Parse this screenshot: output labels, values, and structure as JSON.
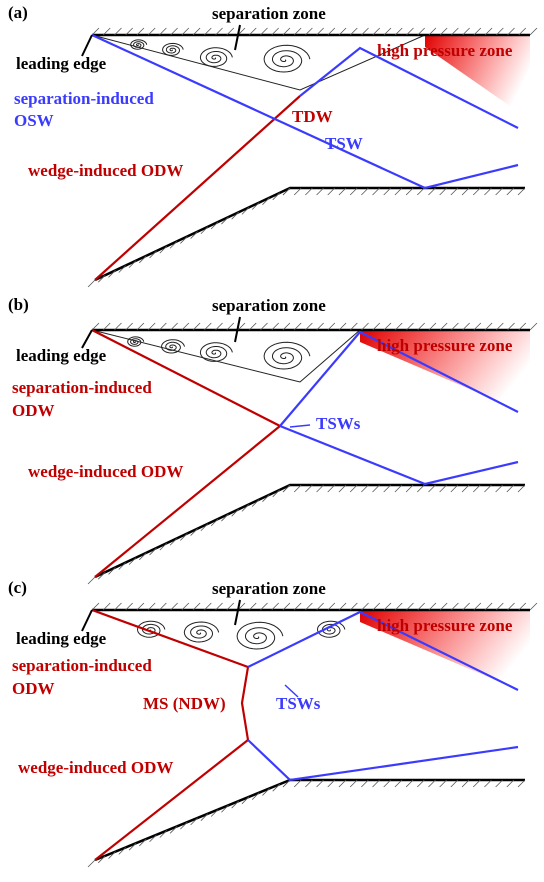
{
  "panels": [
    {
      "label": "(a)",
      "separation_zone": "separation zone",
      "leading_edge": "leading edge",
      "separation_shock": [
        "separation-induced",
        "OSW"
      ],
      "transmitted_detonation": "TDW",
      "transmitted_shock": "TSW",
      "wedge_wave": "wedge-induced ODW",
      "high_pressure_zone": "high pressure zone"
    },
    {
      "label": "(b)",
      "separation_zone": "separation zone",
      "leading_edge": "leading edge",
      "separation_shock": [
        "separation-induced",
        "ODW"
      ],
      "transmitted_shock": "TSWs",
      "wedge_wave": "wedge-induced ODW",
      "high_pressure_zone": "high pressure zone"
    },
    {
      "label": "(c)",
      "separation_zone": "separation zone",
      "leading_edge": "leading edge",
      "separation_shock": [
        "separation-induced",
        "ODW"
      ],
      "mach_stem": "MS (NDW)",
      "transmitted_shock": "TSWs",
      "wedge_wave": "wedge-induced ODW",
      "high_pressure_zone": "high pressure zone"
    }
  ]
}
